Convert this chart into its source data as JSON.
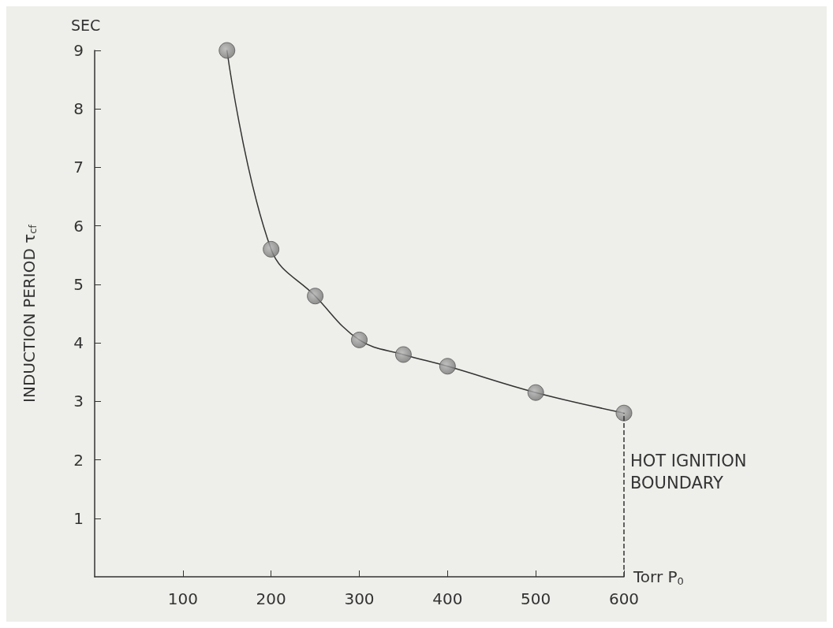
{
  "chart_data": {
    "type": "scatter",
    "xlabel": "Torr P$_{0}$",
    "ylabel": "INDUCTION PERIOD τ$_{cf}$",
    "annotations": [
      "SEC"
    ],
    "series": [
      {
        "color": "#6e6e6e",
        "x": [
          150,
          200,
          250,
          300,
          350,
          400,
          500,
          600
        ],
        "values": [
          9.0,
          5.6,
          4.8,
          4.05,
          3.8,
          3.6,
          3.15,
          2.8
        ]
      },
      {
        "type": "line",
        "marker": "none",
        "color": "#333333",
        "x": [
          150,
          200,
          250,
          300,
          350,
          400,
          500,
          600
        ],
        "values": [
          9.0,
          5.6,
          4.8,
          4.05,
          3.8,
          3.6,
          3.15,
          2.8
        ]
      }
    ],
    "ref_lines": [
      {
        "axis": "x",
        "value": 600,
        "label": "HOT IGNITION BOUNDARY",
        "line_style": "dashed",
        "color": "#333333"
      }
    ],
    "xlim": [
      0,
      600
    ],
    "xticks": [
      100,
      200,
      300,
      400,
      500,
      600
    ],
    "ylim": [
      0,
      9
    ],
    "yticks": [
      1,
      2,
      3,
      4,
      5,
      6,
      7,
      8,
      9
    ],
    "grid": false,
    "marker": "circle",
    "line_style": "solid"
  }
}
